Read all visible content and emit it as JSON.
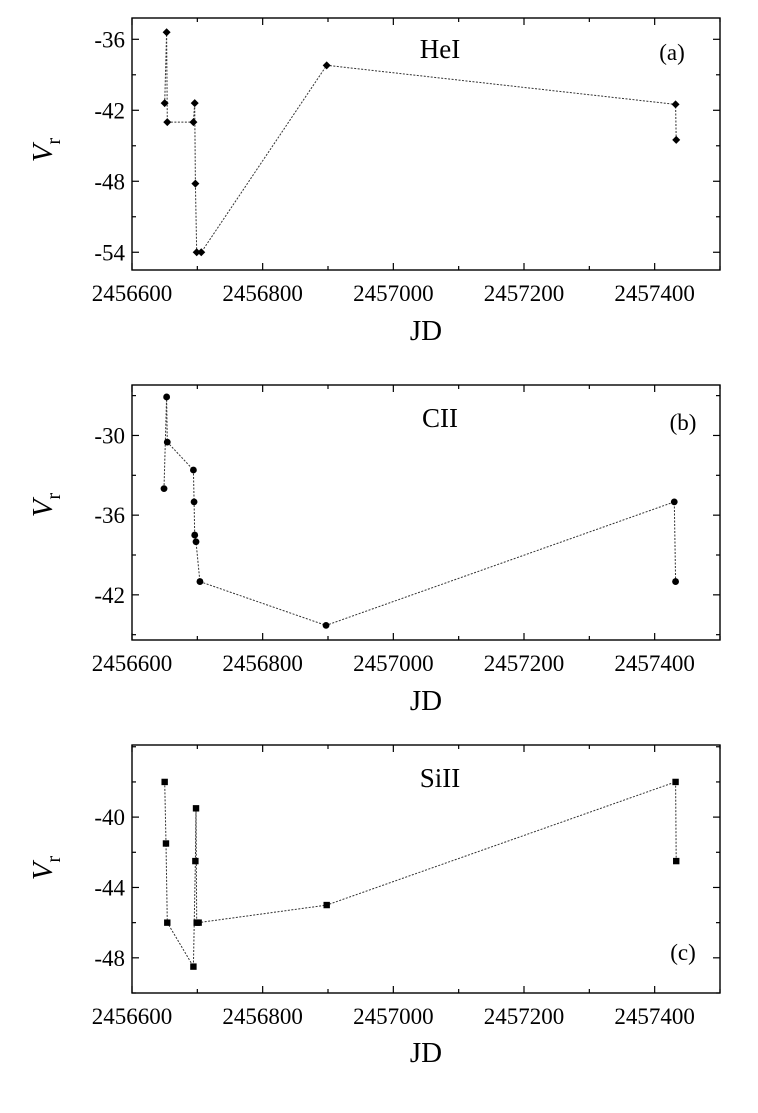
{
  "chart_data": [
    {
      "type": "line",
      "name": "HeI",
      "panel_label": "(a)",
      "xlabel": "JD",
      "ylabel": "V",
      "ylabel_sub": "r",
      "xlim": [
        2456600,
        2457500
      ],
      "ylim": [
        -55.5,
        -34.2
      ],
      "xticks": [
        2456600,
        2456800,
        2457000,
        2457200,
        2457400
      ],
      "yticks": [
        -54,
        -48,
        -42,
        -36
      ],
      "marker": "diamond",
      "series": [
        {
          "x": [
            2456650,
            2456653,
            2456654,
            2456694,
            2456696,
            2456697,
            2456699,
            2456706,
            2456898,
            2457432,
            2457433
          ],
          "y": [
            -41.4,
            -35.4,
            -43.0,
            -43.0,
            -41.4,
            -48.2,
            -54.0,
            -54.0,
            -38.2,
            -41.5,
            -44.5
          ]
        }
      ]
    },
    {
      "type": "line",
      "name": "CII",
      "panel_label": "(b)",
      "xlabel": "JD",
      "ylabel": "V",
      "ylabel_sub": "r",
      "xlim": [
        2456600,
        2457500
      ],
      "ylim": [
        -45.4,
        -26.2
      ],
      "xticks": [
        2456600,
        2456800,
        2457000,
        2457200,
        2457400
      ],
      "yticks": [
        -42,
        -36,
        -30
      ],
      "marker": "circle",
      "series": [
        {
          "x": [
            2456649,
            2456653,
            2456654,
            2456694,
            2456695,
            2456696,
            2456698,
            2456704,
            2456897,
            2457430,
            2457432
          ],
          "y": [
            -34.0,
            -27.1,
            -30.5,
            -32.6,
            -35.0,
            -37.5,
            -38.0,
            -41.0,
            -44.3,
            -35.0,
            -41.0
          ]
        }
      ]
    },
    {
      "type": "line",
      "name": "SiII",
      "panel_label": "(c)",
      "xlabel": "JD",
      "ylabel": "V",
      "ylabel_sub": "r",
      "xlim": [
        2456600,
        2457500
      ],
      "ylim": [
        -50.0,
        -35.9
      ],
      "xticks": [
        2456600,
        2456800,
        2457000,
        2457200,
        2457400
      ],
      "yticks": [
        -48,
        -44,
        -40
      ],
      "marker": "square",
      "series": [
        {
          "x": [
            2456650,
            2456652,
            2456654,
            2456694,
            2456697,
            2456698,
            2456699,
            2456702,
            2456898,
            2457432,
            2457433
          ],
          "y": [
            -38.0,
            -41.5,
            -46.0,
            -48.5,
            -42.5,
            -39.5,
            -46.0,
            -46.0,
            -45.0,
            -38.0,
            -42.5
          ]
        }
      ]
    }
  ]
}
